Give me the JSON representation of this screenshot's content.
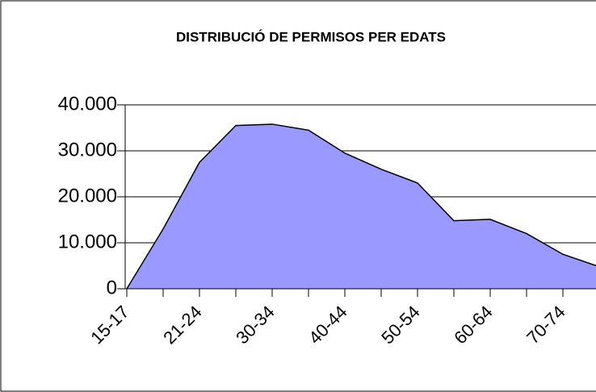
{
  "chart_data": {
    "type": "area",
    "title": "DISTRIBUCIÓ DE PERMISOS PER EDATS",
    "categories": [
      "15-17",
      null,
      "21-24",
      null,
      "30-34",
      null,
      "40-44",
      null,
      "50-54",
      null,
      "60-64",
      null,
      "70-74",
      null
    ],
    "values": [
      0,
      13000,
      27500,
      35500,
      35800,
      34500,
      29500,
      26000,
      23000,
      14800,
      15100,
      12000,
      7500,
      4800
    ],
    "color": "#9999ff",
    "ylim": [
      0,
      40000
    ],
    "yticks": [
      0,
      {
        "value": 10000,
        "label": "10.000"
      },
      {
        "value": 20000,
        "label": "20.000"
      },
      {
        "value": 30000,
        "label": "30.000"
      },
      {
        "value": 40000,
        "label": "40.000"
      }
    ],
    "grid": true
  }
}
